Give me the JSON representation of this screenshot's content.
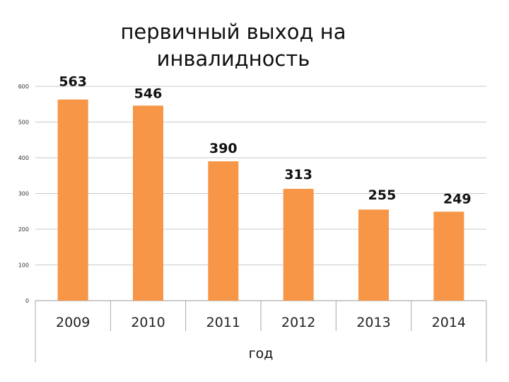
{
  "chart_data": {
    "type": "bar",
    "title": "первичный выход на\nинвалидность",
    "xlabel": "год",
    "ylabel": "",
    "categories": [
      "2009",
      "2010",
      "2011",
      "2012",
      "2013",
      "2014"
    ],
    "values": [
      563,
      546,
      390,
      313,
      255,
      249
    ],
    "data_labels": [
      "563",
      "546",
      "390",
      "313",
      "255",
      "249"
    ],
    "ylim": [
      0,
      600
    ],
    "yticks": [
      0,
      100,
      200,
      300,
      400,
      500,
      600
    ],
    "grid": true,
    "legend": "none",
    "bar_color": "#F79646"
  }
}
